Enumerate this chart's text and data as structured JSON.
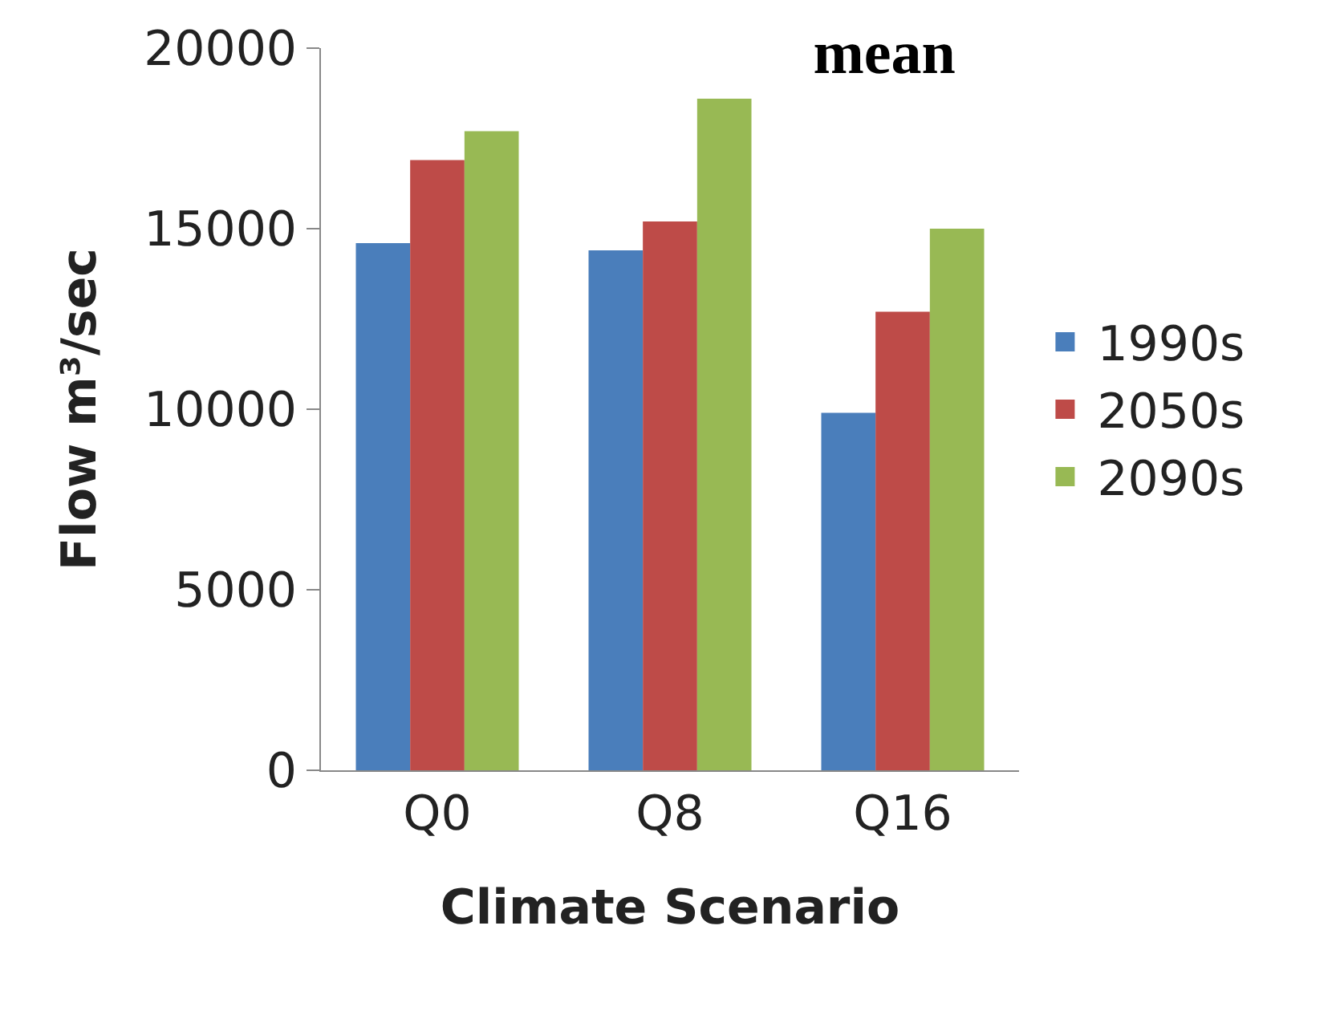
{
  "chart_data": {
    "type": "bar",
    "title": "mean",
    "xlabel": "Climate Scenario",
    "ylabel": "Flow m³/sec",
    "categories": [
      "Q0",
      "Q8",
      "Q16"
    ],
    "series": [
      {
        "name": "1990s",
        "color": "#4a7ebb",
        "values": [
          14600,
          14400,
          9900
        ]
      },
      {
        "name": "2050s",
        "color": "#be4b48",
        "values": [
          16900,
          15200,
          12700
        ]
      },
      {
        "name": "2090s",
        "color": "#98b954",
        "values": [
          17700,
          18600,
          15000
        ]
      }
    ],
    "ylim": [
      0,
      20000
    ],
    "yticks": [
      0,
      5000,
      10000,
      15000,
      20000
    ],
    "grid": false,
    "legend": "right"
  }
}
